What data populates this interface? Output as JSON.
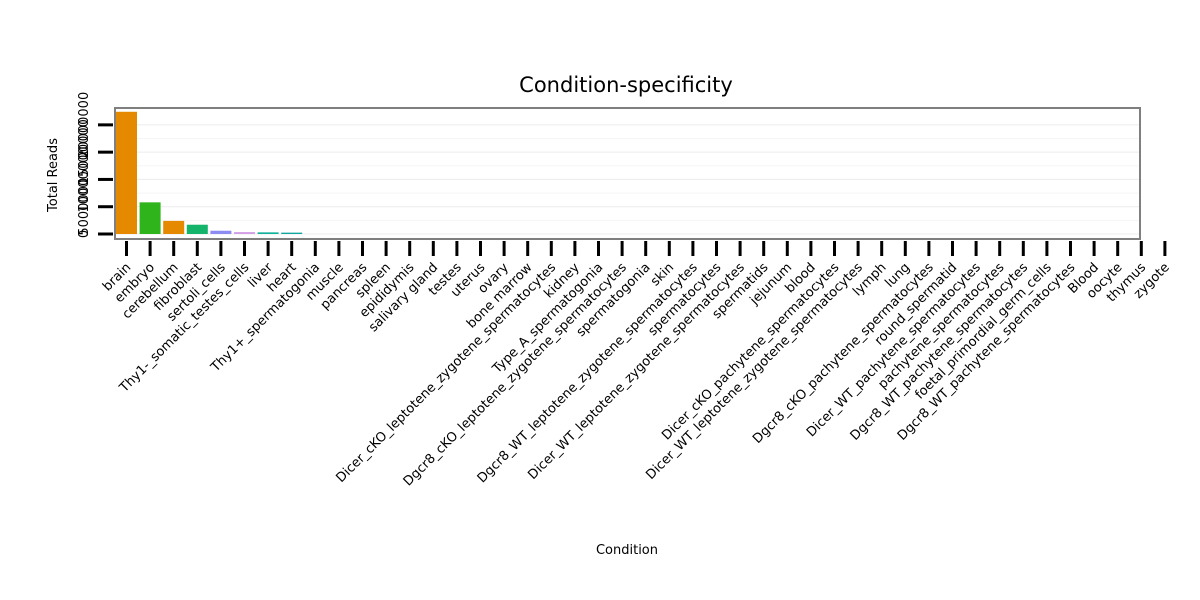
{
  "chart_data": {
    "type": "bar",
    "title": "Condition-specificity",
    "xlabel": "Condition",
    "ylabel": "Total Reads",
    "ylim": [
      0,
      23000000
    ],
    "yticks": [
      0,
      5000000,
      10000000,
      15000000,
      20000000
    ],
    "ytick_labels": [
      "0",
      "5000000",
      "10000000",
      "15000000",
      "20000000"
    ],
    "categories": [
      "brain",
      "embryo",
      "cerebellum",
      "fibroblast",
      "sertoli_cells",
      "Thy1-_somatic_testes_cells",
      "liver",
      "heart",
      "Thy1+_spermatogonia",
      "muscle",
      "pancreas",
      "spleen",
      "epididymis",
      "salivary gland",
      "testes",
      "uterus",
      "ovary",
      "bone marrow",
      "Dicer_cKO_leptotene_zygotene_spermatocytes",
      "kidney",
      "Type_A_spermatogonia",
      "Dgcr8_cKO_leptotene_zygotene_spermatocytes",
      "spermatogonia",
      "skin",
      "Dgcr8_WT_leptotene_zygotene_spermatocytes",
      "spermatocytes",
      "Dicer_WT_leptotene_zygotene_spermatocytes",
      "spermatids",
      "jejunum",
      "blood",
      "Dicer_cKO_pachytene_spermatocytes",
      "Dicer_WT_leptotene_zygotene_spermatocytes",
      "lymph",
      "lung",
      "Dgcr8_cKO_pachytene_spermatocytes",
      "round_spermatid",
      "Dicer_WT_pachytene_spermatocytes",
      "pachytene_spermatocytes",
      "Dgcr8_WT_pachytene_spermatocytes",
      "foetal_primordial_germ_cells",
      "Dgcr8_WT_pachytene_spermatocytes",
      "Blood",
      "oocyte",
      "thymus",
      "zygote"
    ],
    "values": [
      22400000,
      5800000,
      2400000,
      1700000,
      600000,
      350000,
      300000,
      250000,
      0,
      0,
      0,
      0,
      0,
      0,
      0,
      0,
      0,
      0,
      0,
      0,
      0,
      0,
      0,
      0,
      0,
      0,
      0,
      0,
      0,
      0,
      0,
      0,
      0,
      0,
      0,
      0,
      0,
      0,
      0,
      0,
      0,
      0,
      0,
      0,
      0
    ],
    "colors": [
      "#E58A00",
      "#2FB41B",
      "#E58A00",
      "#14B46A",
      "#8C8CF2",
      "#D29EE6",
      "#10B09A",
      "#12A6A0",
      "#E58A00",
      "#E58A00",
      "#E58A00",
      "#E58A00",
      "#E58A00",
      "#E58A00",
      "#E58A00",
      "#E58A00",
      "#E58A00",
      "#E58A00",
      "#E58A00",
      "#E58A00",
      "#E58A00",
      "#E58A00",
      "#E58A00",
      "#E58A00",
      "#E58A00",
      "#E58A00",
      "#E58A00",
      "#E58A00",
      "#E58A00",
      "#E58A00",
      "#E58A00",
      "#E58A00",
      "#E58A00",
      "#E58A00",
      "#E58A00",
      "#E58A00",
      "#E58A00",
      "#E58A00",
      "#E58A00",
      "#E58A00",
      "#E58A00",
      "#E58A00",
      "#E58A00",
      "#E58A00",
      "#E58A00"
    ],
    "grid": true,
    "legend": "none"
  }
}
